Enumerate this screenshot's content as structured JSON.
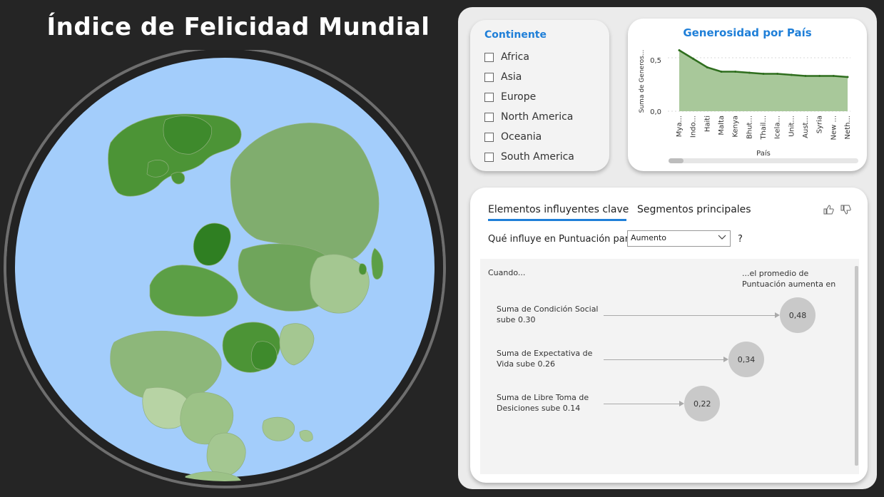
{
  "title": "Índice de Felicidad Mundial",
  "map": {
    "ocean_color": "#a3cdfb",
    "rim_color": "#6e6e6e",
    "land_color_scale": [
      "#e8efd9",
      "#2f7f22"
    ]
  },
  "slicer": {
    "title": "Continente",
    "items": [
      "Africa",
      "Asia",
      "Europe",
      "North America",
      "Oceania",
      "South America"
    ]
  },
  "generosity_chart": {
    "title": "Generosidad por País",
    "ylabel": "Suma de Generos...",
    "xlabel": "País",
    "tick_labels": [
      "0,0",
      "0,5"
    ]
  },
  "chart_data": {
    "type": "area",
    "title": "Generosidad por País",
    "xlabel": "País",
    "ylabel": "Suma de Generos...",
    "categories": [
      "Mya...",
      "Indo...",
      "Haiti",
      "Malta",
      "Kenya",
      "Bhut...",
      "Thail...",
      "Icela...",
      "Unit...",
      "Aust...",
      "Syria",
      "New ...",
      "Neth..."
    ],
    "values": [
      0.57,
      0.49,
      0.41,
      0.37,
      0.37,
      0.36,
      0.35,
      0.35,
      0.34,
      0.33,
      0.33,
      0.33,
      0.32
    ],
    "ylim": [
      0,
      0.6
    ],
    "yticks": [
      0,
      0.5
    ],
    "grid": true,
    "line_color": "#2f6e1e",
    "fill_color": "#a8c89a"
  },
  "key_influencers": {
    "tab_key": "Elementos influyentes clave",
    "tab_segments": "Segmentos principales",
    "question": "Qué influye en Puntuación para",
    "dropdown_value": "Aumento",
    "question_mark": "?",
    "when": "Cuando...",
    "avg_header": "...el promedio de Puntuación aumenta en",
    "influencers": [
      {
        "label": "Suma de Condición Social sube 0.30",
        "value": "0,48",
        "magnitude": 0.48
      },
      {
        "label": "Suma de Expectativa de Vida sube 0.26",
        "value": "0,34",
        "magnitude": 0.34
      },
      {
        "label": "Suma de Libre Toma de Desiciones sube 0.14",
        "value": "0,22",
        "magnitude": 0.22
      }
    ]
  }
}
